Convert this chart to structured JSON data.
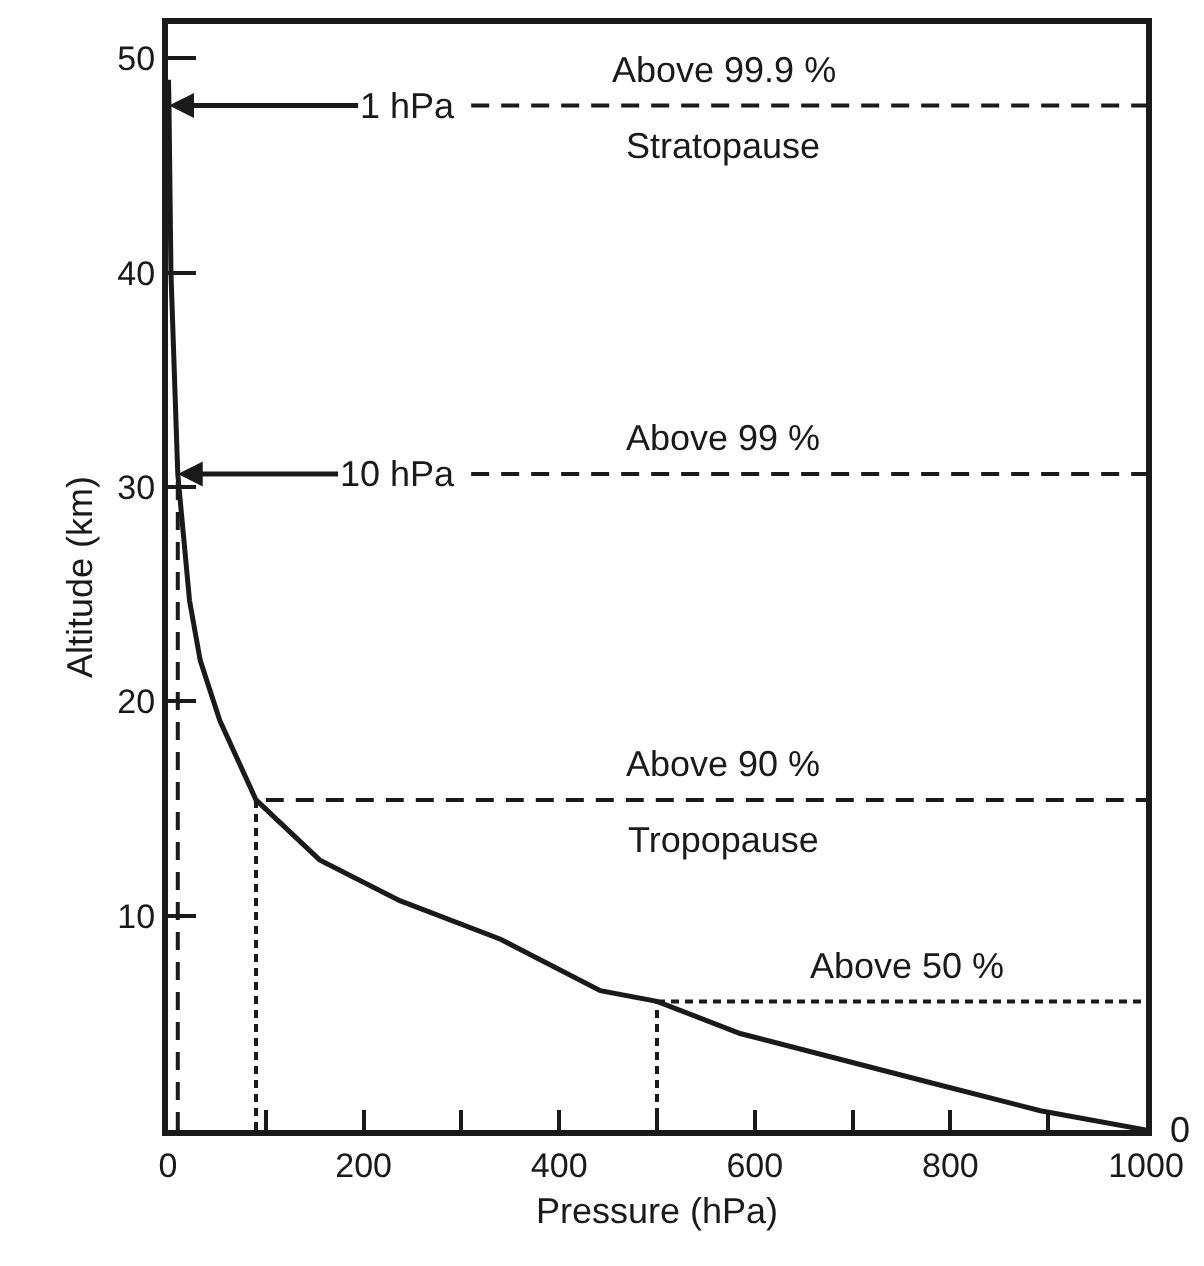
{
  "chart_data": {
    "type": "line",
    "xlabel": "Pressure (hPa)",
    "ylabel": "Altitude (km)",
    "xlim": [
      0,
      1000
    ],
    "xticks": [
      0,
      {
        "value": 100,
        "label": null
      },
      200,
      {
        "value": 300,
        "label": null
      },
      400,
      {
        "value": 500,
        "label": null
      },
      600,
      {
        "value": 700,
        "label": null
      },
      800,
      {
        "value": 900,
        "label": null
      },
      1000
    ],
    "ylim": [
      0,
      51.6
    ],
    "yticks": [
      10,
      20,
      30,
      40,
      50
    ],
    "marker": "none",
    "series": [
      {
        "color": "#1a1a1a",
        "line_style": "solid",
        "x": [
          0.5,
          1,
          3,
          10,
          22,
          33,
          53,
          90,
          155,
          237,
          340,
          442,
          500,
          585,
          687,
          789,
          892,
          1000
        ],
        "values": [
          49,
          47.8,
          40,
          30.6,
          24.7,
          21.9,
          19.1,
          15.4,
          12.6,
          10.7,
          8.9,
          6.5,
          6.0,
          4.5,
          3.3,
          2.1,
          0.9,
          0
        ]
      },
      {
        "color": "#1a1a1a",
        "line_style": "dashed",
        "x": [
          310,
          1000
        ],
        "values": [
          47.8,
          47.8
        ]
      },
      {
        "color": "#1a1a1a",
        "line_style": "dashed",
        "x": [
          310,
          1000
        ],
        "values": [
          30.6,
          30.6
        ]
      },
      {
        "color": "#1a1a1a",
        "line_style": "dashed",
        "x": [
          10,
          10
        ],
        "values": [
          0,
          30.6
        ]
      },
      {
        "color": "#1a1a1a",
        "line_style": "dashed",
        "x": [
          100,
          1000
        ],
        "values": [
          15.4,
          15.4
        ]
      },
      {
        "color": "#1a1a1a",
        "line_style": "dotted",
        "x": [
          90,
          90
        ],
        "values": [
          0,
          15.4
        ]
      },
      {
        "color": "#1a1a1a",
        "line_style": "dotted",
        "x": [
          500,
          1000
        ],
        "values": [
          6.0,
          6.0
        ]
      },
      {
        "color": "#1a1a1a",
        "line_style": "dotted",
        "x": [
          500,
          500
        ],
        "values": [
          0,
          6.0
        ]
      }
    ],
    "annotations": [
      {
        "text": "1 hPa",
        "x": 310,
        "y": 47.8
      },
      {
        "text": "10 hPa",
        "x": 310,
        "y": 30.6
      },
      {
        "text": "Above 99.9 %",
        "x": 568,
        "y": 47.8
      },
      {
        "text": "Stratopause",
        "x": 568,
        "y": 47.8
      },
      {
        "text": "Above 99 %",
        "x": 568,
        "y": 30.6
      },
      {
        "text": "Above 90 %",
        "x": 568,
        "y": 15.4
      },
      {
        "text": "Tropopause",
        "x": 568,
        "y": 15.4
      },
      {
        "text": "Above 50 %",
        "x": 755,
        "y": 6.0
      },
      {
        "text": "0",
        "x": 1000,
        "y": 0
      }
    ]
  }
}
